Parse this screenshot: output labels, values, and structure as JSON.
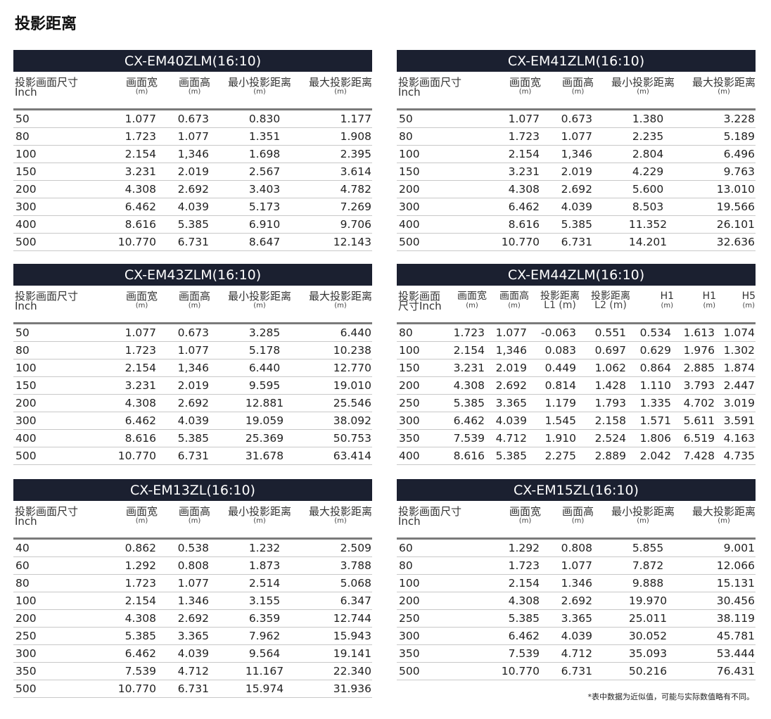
{
  "title": "投影距离",
  "footnote": "*表中数据为近似值，可能与实际数值略有不同。",
  "colors": {
    "header_bar": "#1b2030"
  },
  "tables": [
    {
      "model": "CX-EM40ZLM(16:10)",
      "columns": [
        [
          "投影画面尺寸",
          "Inch"
        ],
        [
          "画面宽",
          "(m)"
        ],
        [
          "画面高",
          "(m)"
        ],
        [
          "最小投影距离",
          "(m)"
        ],
        [
          "最大投影距离",
          "(m)"
        ]
      ],
      "rows": [
        [
          "50",
          "1.077",
          "0.673",
          "0.830",
          "1.177"
        ],
        [
          "80",
          "1.723",
          "1.077",
          "1.351",
          "1.908"
        ],
        [
          "100",
          "2.154",
          "1,346",
          "1.698",
          "2.395"
        ],
        [
          "150",
          "3.231",
          "2.019",
          "2.567",
          "3.614"
        ],
        [
          "200",
          "4.308",
          "2.692",
          "3.403",
          "4.782"
        ],
        [
          "300",
          "6.462",
          "4.039",
          "5.173",
          "7.269"
        ],
        [
          "400",
          "8.616",
          "5.385",
          "6.910",
          "9.706"
        ],
        [
          "500",
          "10.770",
          "6.731",
          "8.647",
          "12.143"
        ]
      ]
    },
    {
      "model": "CX-EM41ZLM(16:10)",
      "columns": [
        [
          "投影画面尺寸",
          "Inch"
        ],
        [
          "画面宽",
          "(m)"
        ],
        [
          "画面高",
          "(m)"
        ],
        [
          "最小投影距离",
          "(m)"
        ],
        [
          "最大投影距离",
          "(m)"
        ]
      ],
      "rows": [
        [
          "50",
          "1.077",
          "0.673",
          "1.380",
          "3.228"
        ],
        [
          "80",
          "1.723",
          "1.077",
          "2.235",
          "5.189"
        ],
        [
          "100",
          "2.154",
          "1,346",
          "2.804",
          "6.496"
        ],
        [
          "150",
          "3.231",
          "2.019",
          "4.229",
          "9.763"
        ],
        [
          "200",
          "4.308",
          "2.692",
          "5.600",
          "13.010"
        ],
        [
          "300",
          "6.462",
          "4.039",
          "8.503",
          "19.566"
        ],
        [
          "400",
          "8.616",
          "5.385",
          "11.352",
          "26.101"
        ],
        [
          "500",
          "10.770",
          "6.731",
          "14.201",
          "32.636"
        ]
      ]
    },
    {
      "model": "CX-EM43ZLM(16:10)",
      "columns": [
        [
          "投影画面尺寸",
          "Inch"
        ],
        [
          "画面宽",
          "(m)"
        ],
        [
          "画面高",
          "(m)"
        ],
        [
          "最小投影距离",
          "(m)"
        ],
        [
          "最大投影距离",
          "(m)"
        ]
      ],
      "rows": [
        [
          "50",
          "1.077",
          "0.673",
          "3.285",
          "6.440"
        ],
        [
          "80",
          "1.723",
          "1.077",
          "5.178",
          "10.238"
        ],
        [
          "100",
          "2.154",
          "1,346",
          "6.440",
          "12.770"
        ],
        [
          "150",
          "3.231",
          "2.019",
          "9.595",
          "19.010"
        ],
        [
          "200",
          "4.308",
          "2.692",
          "12.881",
          "25.546"
        ],
        [
          "300",
          "6.462",
          "4.039",
          "19.059",
          "38.092"
        ],
        [
          "400",
          "8.616",
          "5.385",
          "25.369",
          "50.753"
        ],
        [
          "500",
          "10.770",
          "6.731",
          "31.678",
          "63.414"
        ]
      ]
    },
    {
      "model": "CX-EM44ZLM(16:10)",
      "columns": [
        [
          "投影画面",
          "尺寸Inch"
        ],
        [
          "画面宽",
          "(m)"
        ],
        [
          "画面高",
          "(m)"
        ],
        [
          "投影距离",
          "L1 (m)"
        ],
        [
          "投影距离",
          "L2 (m)"
        ],
        [
          "H1",
          "(m)"
        ],
        [
          "H1",
          "(m)"
        ],
        [
          "H5",
          "(m)"
        ]
      ],
      "rows": [
        [
          "80",
          "1.723",
          "1.077",
          "-0.063",
          "0.551",
          "0.534",
          "1.613",
          "1.074"
        ],
        [
          "100",
          "2.154",
          "1,346",
          "0.083",
          "0.697",
          "0.629",
          "1.976",
          "1.302"
        ],
        [
          "150",
          "3.231",
          "2.019",
          "0.449",
          "1.062",
          "0.864",
          "2.885",
          "1.874"
        ],
        [
          "200",
          "4.308",
          "2.692",
          "0.814",
          "1.428",
          "1.110",
          "3.793",
          "2.447"
        ],
        [
          "250",
          "5.385",
          "3.365",
          "1.179",
          "1.793",
          "1.335",
          "4.702",
          "3.019"
        ],
        [
          "300",
          "6.462",
          "4.039",
          "1.545",
          "2.158",
          "1.571",
          "5.611",
          "3.591"
        ],
        [
          "350",
          "7.539",
          "4.712",
          "1.910",
          "2.524",
          "1.806",
          "6.519",
          "4.163"
        ],
        [
          "400",
          "8.616",
          "5.385",
          "2.275",
          "2.889",
          "2.042",
          "7.428",
          "4.735"
        ]
      ]
    },
    {
      "model": "CX-EM13ZL(16:10)",
      "columns": [
        [
          "投影画面尺寸",
          "Inch"
        ],
        [
          "画面宽",
          "(m)"
        ],
        [
          "画面高",
          "(m)"
        ],
        [
          "最小投影距离",
          "(m)"
        ],
        [
          "最大投影距离",
          "(m)"
        ]
      ],
      "rows": [
        [
          "40",
          "0.862",
          "0.538",
          "1.232",
          "2.509"
        ],
        [
          "60",
          "1.292",
          "0.808",
          "1.873",
          "3.788"
        ],
        [
          "80",
          "1.723",
          "1.077",
          "2.514",
          "5.068"
        ],
        [
          "100",
          "2.154",
          "1.346",
          "3.155",
          "6.347"
        ],
        [
          "200",
          "4.308",
          "2.692",
          "6.359",
          "12.744"
        ],
        [
          "250",
          "5.385",
          "3.365",
          "7.962",
          "15.943"
        ],
        [
          "300",
          "6.462",
          "4.039",
          "9.564",
          "19.141"
        ],
        [
          "350",
          "7.539",
          "4.712",
          "11.167",
          "22.340"
        ],
        [
          "500",
          "10.770",
          "6.731",
          "15.974",
          "31.936"
        ]
      ]
    },
    {
      "model": "CX-EM15ZL(16:10)",
      "columns": [
        [
          "投影画面尺寸",
          "Inch"
        ],
        [
          "画面宽",
          "(m)"
        ],
        [
          "画面高",
          "(m)"
        ],
        [
          "最小投影距离",
          "(m)"
        ],
        [
          "最大投影距离",
          "(m)"
        ]
      ],
      "rows": [
        [
          "60",
          "1.292",
          "0.808",
          "5.855",
          "9.001"
        ],
        [
          "80",
          "1.723",
          "1.077",
          "7.872",
          "12.066"
        ],
        [
          "100",
          "2.154",
          "1.346",
          "9.888",
          "15.131"
        ],
        [
          "200",
          "4.308",
          "2.692",
          "19.970",
          "30.456"
        ],
        [
          "250",
          "5.385",
          "3.365",
          "25.011",
          "38.119"
        ],
        [
          "300",
          "6.462",
          "4.039",
          "30.052",
          "45.781"
        ],
        [
          "350",
          "7.539",
          "4.712",
          "35.093",
          "53.444"
        ],
        [
          "500",
          "10.770",
          "6.731",
          "50.216",
          "76.431"
        ]
      ]
    }
  ]
}
